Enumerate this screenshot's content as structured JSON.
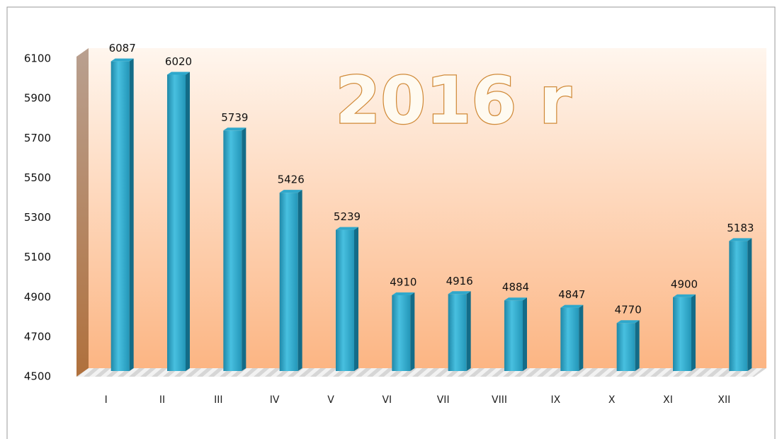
{
  "chart_data": {
    "type": "bar",
    "title": "2016 r",
    "categories": [
      "I",
      "II",
      "III",
      "IV",
      "V",
      "VI",
      "VII",
      "VIII",
      "IX",
      "X",
      "XI",
      "XII"
    ],
    "values": [
      6087,
      6020,
      5739,
      5426,
      5239,
      4910,
      4916,
      4884,
      4847,
      4770,
      4900,
      5183
    ],
    "color": "#2ea8cc",
    "ylim": [
      4500,
      6100
    ],
    "yticks": [
      4500,
      4700,
      4900,
      5100,
      5300,
      5500,
      5700,
      5900,
      6100
    ],
    "grid": false
  }
}
